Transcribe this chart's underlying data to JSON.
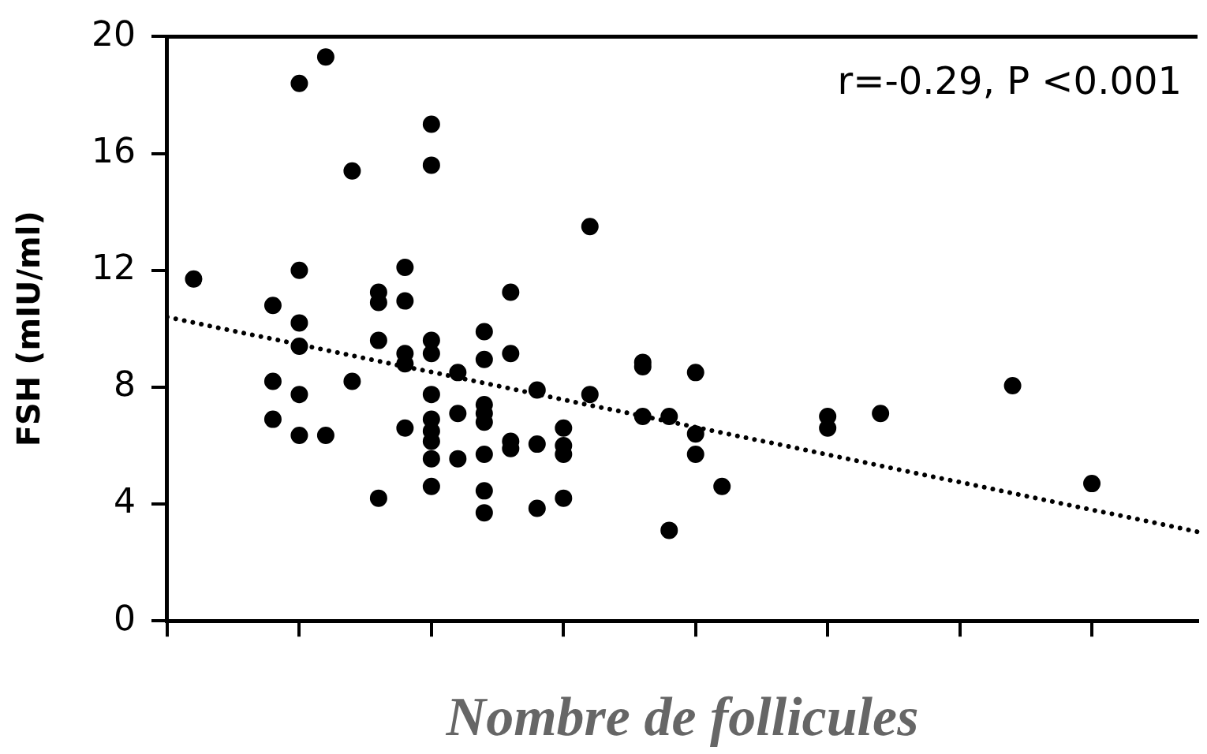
{
  "chart_data": {
    "type": "scatter",
    "ylabel": "FSH (mIU/ml)",
    "xlabel": "Nombre de follicules",
    "annotations": [
      "r=-0.29, P <0.001"
    ],
    "categories": [
      null,
      null,
      null,
      null,
      null,
      null,
      null,
      null,
      null,
      null,
      null,
      null,
      null,
      null,
      null,
      null,
      null,
      null,
      null,
      null,
      null,
      null,
      null,
      null,
      null,
      null,
      null,
      null,
      null,
      null,
      null,
      null,
      null,
      null,
      null,
      null,
      null,
      null,
      null,
      null
    ],
    "ylim": [
      0,
      20
    ],
    "yticks": [
      0,
      4,
      8,
      12,
      16,
      20
    ],
    "grid": false,
    "legend": false,
    "marker": "circle",
    "series": [
      {
        "color": "#000000",
        "values": [
          null,
          11.7,
          null,
          null,
          10.8,
          18.4,
          19.3,
          15.4,
          11.25,
          12.1,
          17.0,
          8.5,
          9.9,
          11.25,
          7.9,
          6.6,
          13.5,
          null,
          8.85,
          7.0,
          8.5,
          4.6,
          null,
          null,
          null,
          7.0,
          null,
          7.1,
          null,
          null,
          null,
          null,
          8.05,
          null,
          null,
          4.7,
          null,
          null,
          null,
          null
        ]
      },
      {
        "color": "#000000",
        "values": [
          null,
          null,
          null,
          null,
          8.2,
          12.0,
          6.35,
          8.2,
          10.9,
          10.95,
          15.6,
          7.1,
          8.95,
          9.15,
          6.05,
          6.0,
          7.75,
          null,
          8.7,
          3.1,
          6.4,
          null,
          null,
          null,
          null,
          6.6,
          null,
          null,
          null,
          null,
          null,
          null,
          null,
          null,
          null,
          null,
          null,
          null,
          null,
          null
        ]
      },
      {
        "color": "#000000",
        "values": [
          null,
          null,
          null,
          null,
          6.9,
          10.2,
          null,
          null,
          9.6,
          9.15,
          9.6,
          5.55,
          7.4,
          6.15,
          3.85,
          5.7,
          null,
          null,
          7.0,
          null,
          5.7,
          null,
          null,
          null,
          null,
          null,
          null,
          null,
          null,
          null,
          null,
          null,
          null,
          null,
          null,
          null,
          null,
          null,
          null,
          null
        ]
      },
      {
        "color": "#000000",
        "values": [
          null,
          null,
          null,
          null,
          null,
          9.4,
          null,
          null,
          4.2,
          8.8,
          9.15,
          null,
          7.1,
          5.9,
          null,
          4.2,
          null,
          null,
          null,
          null,
          null,
          null,
          null,
          null,
          null,
          null,
          null,
          null,
          null,
          null,
          null,
          null,
          null,
          null,
          null,
          null,
          null,
          null,
          null,
          null
        ]
      },
      {
        "color": "#000000",
        "values": [
          null,
          null,
          null,
          null,
          null,
          7.75,
          null,
          null,
          null,
          6.6,
          7.75,
          null,
          6.8,
          null,
          null,
          null,
          null,
          null,
          null,
          null,
          null,
          null,
          null,
          null,
          null,
          null,
          null,
          null,
          null,
          null,
          null,
          null,
          null,
          null,
          null,
          null,
          null,
          null,
          null,
          null
        ]
      },
      {
        "color": "#000000",
        "values": [
          null,
          null,
          null,
          null,
          null,
          6.35,
          null,
          null,
          null,
          null,
          6.9,
          null,
          5.7,
          null,
          null,
          null,
          null,
          null,
          null,
          null,
          null,
          null,
          null,
          null,
          null,
          null,
          null,
          null,
          null,
          null,
          null,
          null,
          null,
          null,
          null,
          null,
          null,
          null,
          null,
          null
        ]
      },
      {
        "color": "#000000",
        "values": [
          null,
          null,
          null,
          null,
          null,
          null,
          null,
          null,
          null,
          null,
          6.5,
          null,
          4.45,
          null,
          null,
          null,
          null,
          null,
          null,
          null,
          null,
          null,
          null,
          null,
          null,
          null,
          null,
          null,
          null,
          null,
          null,
          null,
          null,
          null,
          null,
          null,
          null,
          null,
          null,
          null
        ]
      },
      {
        "color": "#000000",
        "values": [
          null,
          null,
          null,
          null,
          null,
          null,
          null,
          null,
          null,
          null,
          6.15,
          null,
          3.7,
          null,
          null,
          null,
          null,
          null,
          null,
          null,
          null,
          null,
          null,
          null,
          null,
          null,
          null,
          null,
          null,
          null,
          null,
          null,
          null,
          null,
          null,
          null,
          null,
          null,
          null,
          null
        ]
      },
      {
        "color": "#000000",
        "values": [
          null,
          null,
          null,
          null,
          null,
          null,
          null,
          null,
          null,
          null,
          5.55,
          null,
          null,
          null,
          null,
          null,
          null,
          null,
          null,
          null,
          null,
          null,
          null,
          null,
          null,
          null,
          null,
          null,
          null,
          null,
          null,
          null,
          null,
          null,
          null,
          null,
          null,
          null,
          null,
          null
        ]
      },
      {
        "color": "#000000",
        "values": [
          null,
          null,
          null,
          null,
          null,
          null,
          null,
          null,
          null,
          null,
          4.6,
          null,
          null,
          null,
          null,
          null,
          null,
          null,
          null,
          null,
          null,
          null,
          null,
          null,
          null,
          null,
          null,
          null,
          null,
          null,
          null,
          null,
          null,
          null,
          null,
          null,
          null,
          null,
          null,
          null
        ]
      },
      {
        "type": "line",
        "color": "#000000",
        "line_style": "dotted",
        "marker": "none",
        "values": [
          10.4,
          10.21,
          10.02,
          9.83,
          9.65,
          9.46,
          9.27,
          9.08,
          8.89,
          8.7,
          8.52,
          8.33,
          8.14,
          7.95,
          7.76,
          7.57,
          7.38,
          7.2,
          7.01,
          6.82,
          6.63,
          6.44,
          6.25,
          6.07,
          5.88,
          5.69,
          5.5,
          5.31,
          5.12,
          4.93,
          4.75,
          4.56,
          4.37,
          4.18,
          3.99,
          3.8,
          3.62,
          3.43,
          3.24,
          3.05
        ]
      }
    ]
  }
}
